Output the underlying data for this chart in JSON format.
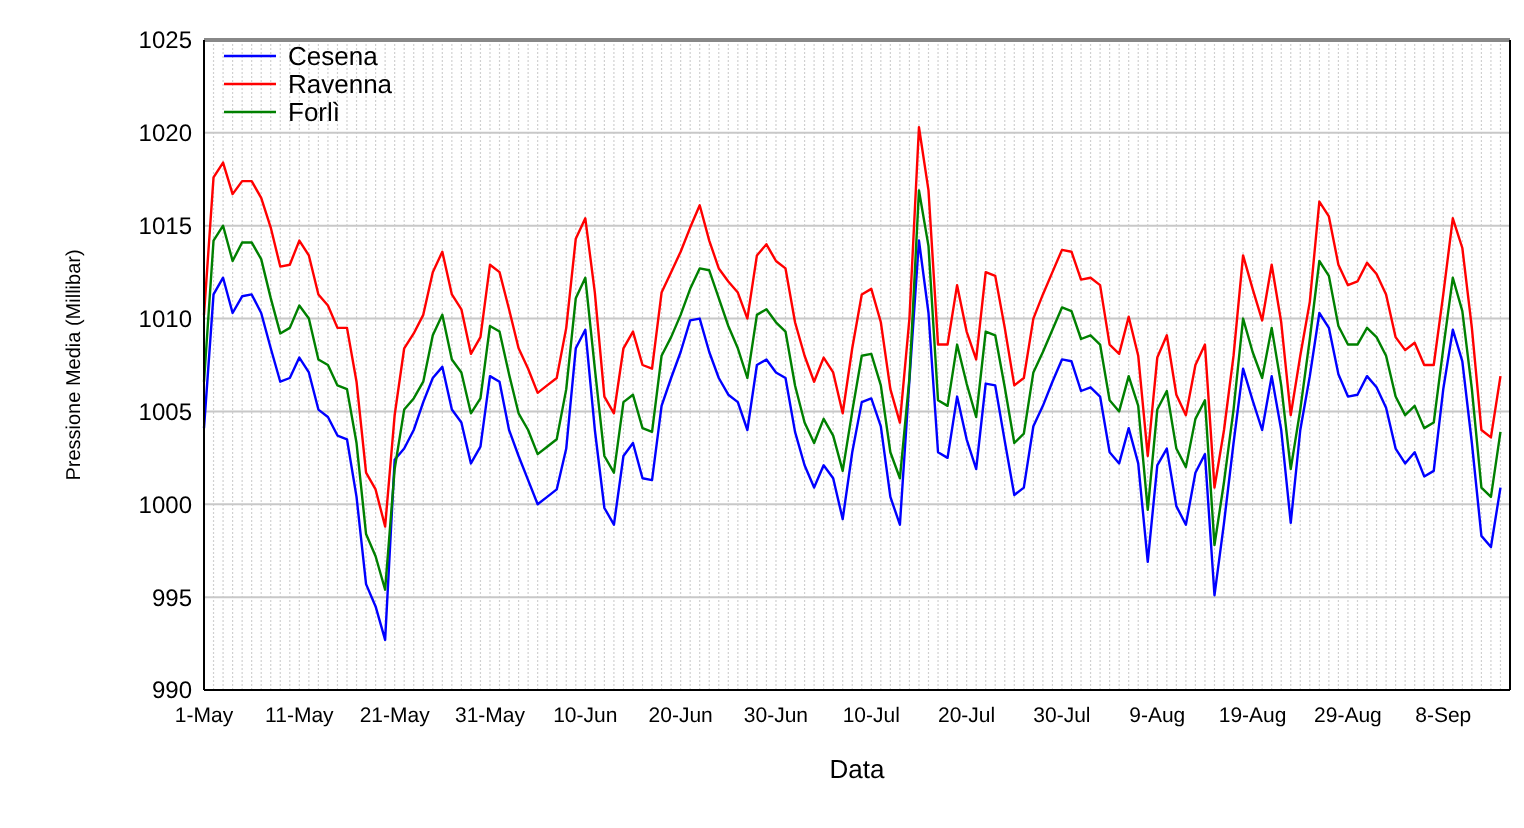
{
  "chart_data": {
    "type": "line",
    "xlabel": "Data",
    "ylabel": "Pressione Media (Millibar)",
    "x": [
      "--05-01",
      "--05-02",
      "--05-03",
      "--05-04",
      "--05-05",
      "--05-06",
      "--05-07",
      "--05-08",
      "--05-09",
      "--05-10",
      "--05-11",
      "--05-12",
      "--05-13",
      "--05-14",
      "--05-15",
      "--05-16",
      "--05-17",
      "--05-18",
      "--05-19",
      "--05-20",
      "--05-21",
      "--05-22",
      "--05-23",
      "--05-24",
      "--05-25",
      "--05-26",
      "--05-27",
      "--05-28",
      "--05-29",
      "--05-30",
      "--05-31",
      "--06-01",
      "--06-02",
      "--06-03",
      "--06-04",
      "--06-05",
      "--06-06",
      "--06-07",
      "--06-08",
      "--06-09",
      "--06-10",
      "--06-11",
      "--06-12",
      "--06-13",
      "--06-14",
      "--06-15",
      "--06-16",
      "--06-17",
      "--06-18",
      "--06-19",
      "--06-20",
      "--06-21",
      "--06-22",
      "--06-23",
      "--06-24",
      "--06-25",
      "--06-26",
      "--06-27",
      "--06-28",
      "--06-29",
      "--06-30",
      "--07-01",
      "--07-02",
      "--07-03",
      "--07-04",
      "--07-05",
      "--07-06",
      "--07-07",
      "--07-08",
      "--07-09",
      "--07-10",
      "--07-11",
      "--07-12",
      "--07-13",
      "--07-14",
      "--07-15",
      "--07-16",
      "--07-17",
      "--07-18",
      "--07-19",
      "--07-20",
      "--07-21",
      "--07-22",
      "--07-23",
      "--07-24",
      "--07-25",
      "--07-26",
      "--07-27",
      "--07-28",
      "--07-29",
      "--07-30",
      "--07-31",
      "--08-01",
      "--08-02",
      "--08-03",
      "--08-04",
      "--08-05",
      "--08-06",
      "--08-07",
      "--08-08",
      "--08-09",
      "--08-10",
      "--08-11",
      "--08-12",
      "--08-13",
      "--08-14",
      "--08-15",
      "--08-16",
      "--08-17",
      "--08-18",
      "--08-19",
      "--08-20",
      "--08-21",
      "--08-22",
      "--08-23",
      "--08-24",
      "--08-25",
      "--08-26",
      "--08-27",
      "--08-28",
      "--08-29",
      "--08-30",
      "--08-31",
      "--09-01",
      "--09-02",
      "--09-03",
      "--09-04",
      "--09-05",
      "--09-06",
      "--09-07",
      "--09-08",
      "--09-09",
      "--09-10",
      "--09-11",
      "--09-12",
      "--09-13",
      "--09-14"
    ],
    "series": [
      {
        "name": "Cesena",
        "color": "#0000ff",
        "values": [
          1004.1,
          1011.3,
          1012.2,
          1010.3,
          1011.2,
          1011.3,
          1010.3,
          1008.4,
          1006.6,
          1006.8,
          1007.9,
          1007.1,
          1005.1,
          1004.7,
          1003.7,
          1003.5,
          1000.4,
          995.7,
          994.5,
          992.7,
          1002.4,
          1003.0,
          1004.0,
          1005.5,
          1006.8,
          1007.4,
          1005.1,
          1004.4,
          1002.2,
          1003.1,
          1006.9,
          1006.6,
          1004.0,
          1002.6,
          1001.3,
          1000.0,
          1000.4,
          1000.8,
          1003.0,
          1008.4,
          1009.4,
          1004.0,
          999.8,
          998.9,
          1002.6,
          1003.3,
          1001.4,
          1001.3,
          1005.3,
          1006.8,
          1008.2,
          1009.9,
          1010.0,
          1008.2,
          1006.8,
          1005.9,
          1005.5,
          1004.0,
          1007.5,
          1007.8,
          1007.1,
          1006.8,
          1003.9,
          1002.1,
          1000.9,
          1002.1,
          1001.4,
          999.2,
          1002.8,
          1005.5,
          1005.7,
          1004.2,
          1000.4,
          998.9,
          1006.7,
          1014.2,
          1010.3,
          1002.8,
          1002.5,
          1005.8,
          1003.5,
          1001.9,
          1006.5,
          1006.4,
          1003.4,
          1000.5,
          1000.9,
          1004.2,
          1005.3,
          1006.6,
          1007.8,
          1007.7,
          1006.1,
          1006.3,
          1005.8,
          1002.8,
          1002.2,
          1004.1,
          1002.2,
          996.9,
          1002.1,
          1003.0,
          999.9,
          998.9,
          1001.7,
          1002.7,
          995.1,
          999.0,
          1003.3,
          1007.3,
          1005.6,
          1004.0,
          1006.9,
          1004.0,
          999.0,
          1004.0,
          1006.9,
          1010.3,
          1009.5,
          1007.0,
          1005.8,
          1005.9,
          1006.9,
          1006.3,
          1005.2,
          1003.0,
          1002.2,
          1002.8,
          1001.5,
          1001.8,
          1006.2,
          1009.4,
          1007.7,
          1003.3,
          998.3,
          997.7,
          1000.9
        ]
      },
      {
        "name": "Ravenna",
        "color": "#ff0000",
        "values": [
          1010.2,
          1017.6,
          1018.4,
          1016.7,
          1017.4,
          1017.4,
          1016.5,
          1014.9,
          1012.8,
          1012.9,
          1014.2,
          1013.4,
          1011.3,
          1010.7,
          1009.5,
          1009.5,
          1006.6,
          1001.7,
          1000.8,
          998.8,
          1004.8,
          1008.4,
          1009.2,
          1010.2,
          1012.5,
          1013.6,
          1011.3,
          1010.5,
          1008.1,
          1009.0,
          1012.9,
          1012.5,
          1010.5,
          1008.4,
          1007.3,
          1006.0,
          1006.4,
          1006.8,
          1009.5,
          1014.3,
          1015.4,
          1011.4,
          1005.8,
          1004.9,
          1008.4,
          1009.3,
          1007.5,
          1007.3,
          1011.4,
          1012.5,
          1013.6,
          1014.9,
          1016.1,
          1014.2,
          1012.7,
          1012.0,
          1011.4,
          1010.0,
          1013.4,
          1014.0,
          1013.1,
          1012.7,
          1009.8,
          1008.0,
          1006.6,
          1007.9,
          1007.1,
          1004.9,
          1008.4,
          1011.3,
          1011.6,
          1009.8,
          1006.2,
          1004.4,
          1010.0,
          1020.3,
          1016.9,
          1008.6,
          1008.6,
          1011.8,
          1009.3,
          1007.8,
          1012.5,
          1012.3,
          1009.5,
          1006.4,
          1006.8,
          1010.0,
          1011.3,
          1012.5,
          1013.7,
          1013.6,
          1012.1,
          1012.2,
          1011.8,
          1008.6,
          1008.1,
          1010.1,
          1008.0,
          1002.6,
          1007.9,
          1009.1,
          1005.9,
          1004.8,
          1007.5,
          1008.6,
          1000.9,
          1004.0,
          1008.0,
          1013.4,
          1011.6,
          1009.9,
          1012.9,
          1009.8,
          1004.8,
          1008.0,
          1010.9,
          1016.3,
          1015.5,
          1012.9,
          1011.8,
          1012.0,
          1013.0,
          1012.4,
          1011.3,
          1009.0,
          1008.3,
          1008.7,
          1007.5,
          1007.5,
          1011.3,
          1015.4,
          1013.8,
          1009.5,
          1004.0,
          1003.6,
          1006.9
        ]
      },
      {
        "name": "Forlì",
        "color": "#008000",
        "values": [
          1006.6,
          1014.2,
          1015.0,
          1013.1,
          1014.1,
          1014.1,
          1013.2,
          1011.1,
          1009.2,
          1009.5,
          1010.7,
          1010.0,
          1007.8,
          1007.5,
          1006.4,
          1006.2,
          1003.3,
          998.4,
          997.2,
          995.4,
          1001.9,
          1005.1,
          1005.7,
          1006.6,
          1009.1,
          1010.2,
          1007.8,
          1007.1,
          1004.9,
          1005.7,
          1009.6,
          1009.3,
          1007.0,
          1004.9,
          1004.0,
          1002.7,
          1003.1,
          1003.5,
          1006.2,
          1011.1,
          1012.2,
          1007.3,
          1002.6,
          1001.7,
          1005.5,
          1005.9,
          1004.1,
          1003.9,
          1008.0,
          1009.0,
          1010.2,
          1011.6,
          1012.7,
          1012.6,
          1011.1,
          1009.6,
          1008.4,
          1006.8,
          1010.2,
          1010.5,
          1009.8,
          1009.3,
          1006.4,
          1004.4,
          1003.3,
          1004.6,
          1003.7,
          1001.8,
          1005.0,
          1008.0,
          1008.1,
          1006.4,
          1002.8,
          1001.4,
          1006.8,
          1016.9,
          1013.9,
          1005.6,
          1005.3,
          1008.6,
          1006.5,
          1004.7,
          1009.3,
          1009.1,
          1006.3,
          1003.3,
          1003.8,
          1007.1,
          1008.2,
          1009.4,
          1010.6,
          1010.4,
          1008.9,
          1009.1,
          1008.6,
          1005.6,
          1005.0,
          1006.9,
          1005.3,
          999.7,
          1005.1,
          1006.1,
          1003.0,
          1002.0,
          1004.6,
          1005.6,
          997.8,
          1001.2,
          1005.1,
          1010.0,
          1008.2,
          1006.8,
          1009.5,
          1006.4,
          1001.9,
          1005.1,
          1008.9,
          1013.1,
          1012.3,
          1009.6,
          1008.6,
          1008.6,
          1009.5,
          1009.0,
          1008.0,
          1005.8,
          1004.8,
          1005.3,
          1004.1,
          1004.4,
          1008.4,
          1012.2,
          1010.4,
          1006.2,
          1000.9,
          1000.4,
          1003.9
        ]
      }
    ],
    "xlim": [
      "--05-01",
      "--09-15"
    ],
    "xticks": [
      {
        "value": "--05-01",
        "label": "1-May"
      },
      {
        "value": "--05-11",
        "label": "11-May"
      },
      {
        "value": "--05-21",
        "label": "21-May"
      },
      {
        "value": "--05-31",
        "label": "31-May"
      },
      {
        "value": "--06-10",
        "label": "10-Jun"
      },
      {
        "value": "--06-20",
        "label": "20-Jun"
      },
      {
        "value": "--06-30",
        "label": "30-Jun"
      },
      {
        "value": "--07-10",
        "label": "10-Jul"
      },
      {
        "value": "--07-20",
        "label": "20-Jul"
      },
      {
        "value": "--07-30",
        "label": "30-Jul"
      },
      {
        "value": "--08-09",
        "label": "9-Aug"
      },
      {
        "value": "--08-19",
        "label": "19-Aug"
      },
      {
        "value": "--08-29",
        "label": "29-Aug"
      },
      {
        "value": "--09-08",
        "label": "8-Sep"
      }
    ],
    "ylim": [
      990,
      1025
    ],
    "yticks": [
      990,
      995,
      1000,
      1005,
      1010,
      1015,
      1020,
      1025
    ],
    "grid": true,
    "legend": "top left",
    "marker": "none",
    "line_style": "solid"
  }
}
